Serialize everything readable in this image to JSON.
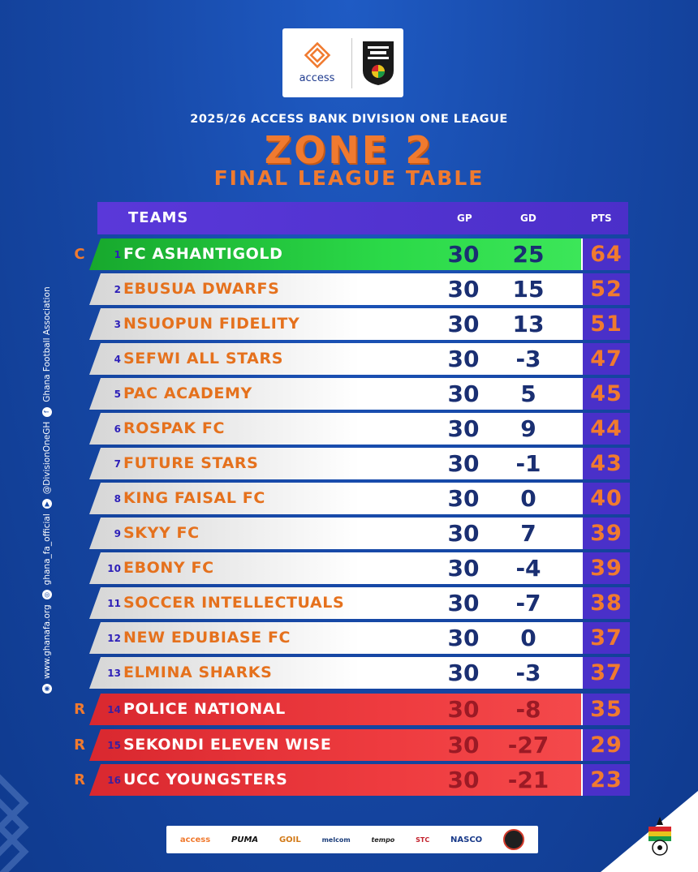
{
  "header": {
    "access_word": "access",
    "season_line": "2025/26 ACCESS BANK DIVISION ONE LEAGUE",
    "zone_title": "ZONE 2",
    "subtitle": "FINAL LEAGUE TABLE"
  },
  "table": {
    "columns": {
      "teams": "TEAMS",
      "gp": "GP",
      "gd": "GD",
      "pts": "PTS"
    },
    "rows": [
      {
        "status": "C",
        "pos": "1",
        "team": "FC ASHANTIGOLD",
        "gp": "30",
        "gd": "25",
        "pts": "64"
      },
      {
        "status": "",
        "pos": "2",
        "team": "EBUSUA DWARFS",
        "gp": "30",
        "gd": "15",
        "pts": "52"
      },
      {
        "status": "",
        "pos": "3",
        "team": "NSUOPUN FIDELITY",
        "gp": "30",
        "gd": "13",
        "pts": "51"
      },
      {
        "status": "",
        "pos": "4",
        "team": "SEFWI ALL STARS",
        "gp": "30",
        "gd": "-3",
        "pts": "47"
      },
      {
        "status": "",
        "pos": "5",
        "team": "PAC ACADEMY",
        "gp": "30",
        "gd": "5",
        "pts": "45"
      },
      {
        "status": "",
        "pos": "6",
        "team": "ROSPAK FC",
        "gp": "30",
        "gd": "9",
        "pts": "44"
      },
      {
        "status": "",
        "pos": "7",
        "team": "FUTURE STARS",
        "gp": "30",
        "gd": "-1",
        "pts": "43"
      },
      {
        "status": "",
        "pos": "8",
        "team": "KING FAISAL FC",
        "gp": "30",
        "gd": "0",
        "pts": "40"
      },
      {
        "status": "",
        "pos": "9",
        "team": "SKYY FC",
        "gp": "30",
        "gd": "7",
        "pts": "39"
      },
      {
        "status": "",
        "pos": "10",
        "team": "EBONY FC",
        "gp": "30",
        "gd": "-4",
        "pts": "39"
      },
      {
        "status": "",
        "pos": "11",
        "team": "SOCCER INTELLECTUALS",
        "gp": "30",
        "gd": "-7",
        "pts": "38"
      },
      {
        "status": "",
        "pos": "12",
        "team": "NEW EDUBIASE FC",
        "gp": "30",
        "gd": "0",
        "pts": "37"
      },
      {
        "status": "",
        "pos": "13",
        "team": "ELMINA SHARKS",
        "gp": "30",
        "gd": "-3",
        "pts": "37"
      },
      {
        "status": "R",
        "pos": "14",
        "team": "POLICE NATIONAL",
        "gp": "30",
        "gd": "-8",
        "pts": "35"
      },
      {
        "status": "R",
        "pos": "15",
        "team": "SEKONDI ELEVEN WISE",
        "gp": "30",
        "gd": "-27",
        "pts": "29"
      },
      {
        "status": "R",
        "pos": "16",
        "team": "UCC YOUNGSTERS",
        "gp": "30",
        "gd": "-21",
        "pts": "23"
      }
    ]
  },
  "side_credits": {
    "website": "www.ghanafa.org",
    "instagram": "ghana_fa_official",
    "twitter": "@DivisionOneGH",
    "facebook": "Ghana Football Association"
  },
  "sponsors": {
    "access": "access",
    "puma": "PUMA",
    "goil": "GOIL",
    "melcom": "melcom",
    "tempo": "tempo",
    "stc": "STC",
    "nasco": "NASCO"
  },
  "colors": {
    "background": "#1749a8",
    "accent_orange": "#f07a2f",
    "header_purple": "#4b2fc9",
    "champion_green": "#2bd948",
    "relegation_red": "#ee3b3f",
    "number_navy": "#1a2f72"
  }
}
